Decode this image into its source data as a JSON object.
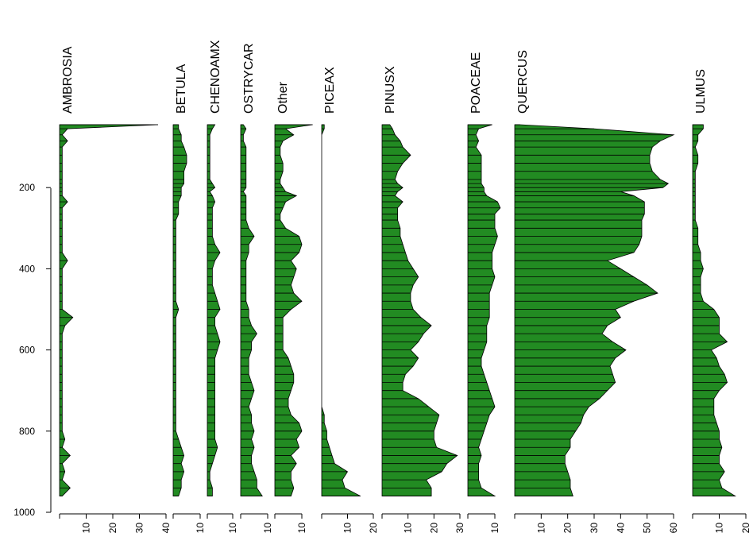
{
  "chart_data": {
    "type": "area",
    "title": "",
    "ylabel": "",
    "y_axis": {
      "ylim": [
        1000,
        0
      ],
      "ticks": [
        200,
        400,
        600,
        800,
        1000
      ]
    },
    "depths": [
      40,
      55,
      70,
      85,
      100,
      120,
      140,
      160,
      180,
      190,
      200,
      210,
      220,
      235,
      250,
      265,
      280,
      300,
      320,
      340,
      360,
      380,
      400,
      420,
      440,
      460,
      480,
      500,
      520,
      540,
      560,
      580,
      600,
      620,
      640,
      660,
      680,
      700,
      720,
      740,
      760,
      780,
      800,
      820,
      840,
      860,
      880,
      900,
      920,
      940,
      960
    ],
    "taxa": [
      {
        "name": "AMBROSIA",
        "xlim": [
          0,
          40
        ],
        "xticks": [
          10,
          20,
          30,
          40
        ],
        "values": [
          37,
          3,
          1,
          3,
          1,
          1,
          1,
          1,
          1,
          1,
          1,
          1,
          1,
          3,
          1,
          1,
          1,
          1,
          1,
          1,
          1,
          3,
          1,
          1,
          1,
          1,
          1,
          1,
          5,
          2,
          1,
          1,
          1,
          1,
          1,
          1,
          1,
          1,
          1,
          1,
          1,
          1,
          1,
          2,
          1,
          4,
          1,
          2,
          1,
          4,
          1
        ]
      },
      {
        "name": "BETULA",
        "xlim": [
          0,
          10
        ],
        "xticks": [
          10
        ],
        "values": [
          2,
          2,
          3,
          3,
          4,
          5,
          5,
          4,
          4,
          4,
          3,
          3,
          3,
          2,
          2,
          2,
          1,
          1,
          1,
          1,
          1,
          1,
          1,
          1,
          1,
          1,
          1,
          2,
          1,
          1,
          1,
          1,
          1,
          1,
          1,
          1,
          1,
          1,
          1,
          1,
          1,
          1,
          1,
          2,
          3,
          4,
          3,
          4,
          3,
          3,
          2
        ]
      },
      {
        "name": "CHENOAMX",
        "xlim": [
          0,
          10
        ],
        "xticks": [
          10
        ],
        "values": [
          3,
          2,
          1,
          1,
          1,
          1,
          1,
          1,
          1,
          2,
          3,
          1,
          2,
          3,
          2,
          2,
          2,
          2,
          2,
          3,
          5,
          3,
          2,
          2,
          2,
          3,
          4,
          5,
          3,
          3,
          4,
          5,
          4,
          3,
          3,
          3,
          3,
          3,
          3,
          3,
          3,
          3,
          3,
          3,
          4,
          3,
          2,
          1,
          1,
          2,
          2
        ]
      },
      {
        "name": "OSTRYCAR",
        "xlim": [
          0,
          10
        ],
        "xticks": [
          10
        ],
        "values": [
          1,
          2,
          1,
          1,
          2,
          2,
          2,
          2,
          2,
          2,
          2,
          1,
          2,
          2,
          2,
          2,
          2,
          3,
          5,
          3,
          3,
          2,
          2,
          2,
          2,
          2,
          2,
          3,
          3,
          4,
          6,
          4,
          4,
          3,
          3,
          3,
          4,
          5,
          4,
          3,
          4,
          4,
          5,
          4,
          5,
          4,
          4,
          5,
          6,
          6,
          8
        ]
      },
      {
        "name": "Other",
        "xlim": [
          0,
          10
        ],
        "xticks": [
          10
        ],
        "values": [
          14,
          4,
          7,
          3,
          2,
          2,
          3,
          3,
          2,
          2,
          3,
          4,
          8,
          4,
          3,
          2,
          2,
          4,
          9,
          10,
          9,
          6,
          8,
          7,
          6,
          7,
          10,
          6,
          3,
          3,
          3,
          3,
          3,
          5,
          6,
          7,
          7,
          6,
          5,
          5,
          6,
          9,
          10,
          8,
          9,
          6,
          8,
          6,
          6,
          7,
          6
        ]
      },
      {
        "name": "PICEAX",
        "xlim": [
          0,
          20
        ],
        "xticks": [
          10,
          20
        ],
        "values": [
          1,
          1,
          0,
          0,
          0,
          0,
          0,
          0,
          0,
          0,
          0,
          0,
          0,
          0,
          0,
          0,
          0,
          0,
          0,
          0,
          0,
          0,
          0,
          0,
          0,
          0,
          0,
          0,
          0,
          0,
          0,
          0,
          0,
          0,
          0,
          0,
          0,
          0,
          0,
          0,
          1,
          1,
          2,
          2,
          3,
          4,
          5,
          10,
          8,
          9,
          15
        ]
      },
      {
        "name": "PINUSX",
        "xlim": [
          0,
          30
        ],
        "xticks": [
          10,
          20,
          30
        ],
        "values": [
          3,
          4,
          5,
          7,
          8,
          11,
          8,
          6,
          5,
          6,
          8,
          6,
          5,
          8,
          6,
          6,
          6,
          7,
          7,
          8,
          9,
          10,
          12,
          14,
          12,
          11,
          11,
          12,
          15,
          19,
          16,
          14,
          11,
          14,
          12,
          9,
          8,
          8,
          14,
          18,
          22,
          21,
          20,
          20,
          21,
          29,
          25,
          23,
          17,
          19,
          19
        ]
      },
      {
        "name": "POACEAE",
        "xlim": [
          0,
          10
        ],
        "xticks": [
          10
        ],
        "values": [
          9,
          4,
          3,
          4,
          3,
          5,
          5,
          5,
          5,
          5,
          6,
          6,
          7,
          11,
          12,
          10,
          10,
          10,
          11,
          10,
          9,
          9,
          9,
          10,
          9,
          8,
          8,
          8,
          8,
          7,
          7,
          7,
          6,
          5,
          5,
          6,
          7,
          8,
          9,
          10,
          8,
          7,
          6,
          5,
          4,
          5,
          4,
          4,
          4,
          5,
          10
        ]
      },
      {
        "name": "QUERCUS",
        "xlim": [
          0,
          60
        ],
        "xticks": [
          10,
          20,
          30,
          40,
          50,
          60
        ],
        "values": [
          2,
          30,
          60,
          55,
          52,
          51,
          51,
          52,
          55,
          58,
          56,
          40,
          45,
          49,
          49,
          49,
          48,
          48,
          48,
          47,
          45,
          35,
          40,
          45,
          50,
          54,
          45,
          38,
          40,
          35,
          33,
          37,
          42,
          38,
          36,
          37,
          38,
          35,
          32,
          28,
          26,
          25,
          23,
          21,
          21,
          19,
          19,
          20,
          21,
          21,
          22
        ]
      },
      {
        "name": "ULMUS",
        "xlim": [
          0,
          20
        ],
        "xticks": [
          10,
          20
        ],
        "values": [
          4,
          4,
          2,
          2,
          1,
          2,
          2,
          1,
          1,
          1,
          1,
          1,
          1,
          1,
          1,
          1,
          1,
          2,
          2,
          2,
          3,
          3,
          4,
          3,
          3,
          3,
          4,
          8,
          10,
          10,
          10,
          13,
          7,
          9,
          10,
          12,
          13,
          10,
          8,
          8,
          8,
          9,
          10,
          10,
          11,
          10,
          10,
          12,
          10,
          11,
          16
        ]
      }
    ]
  }
}
